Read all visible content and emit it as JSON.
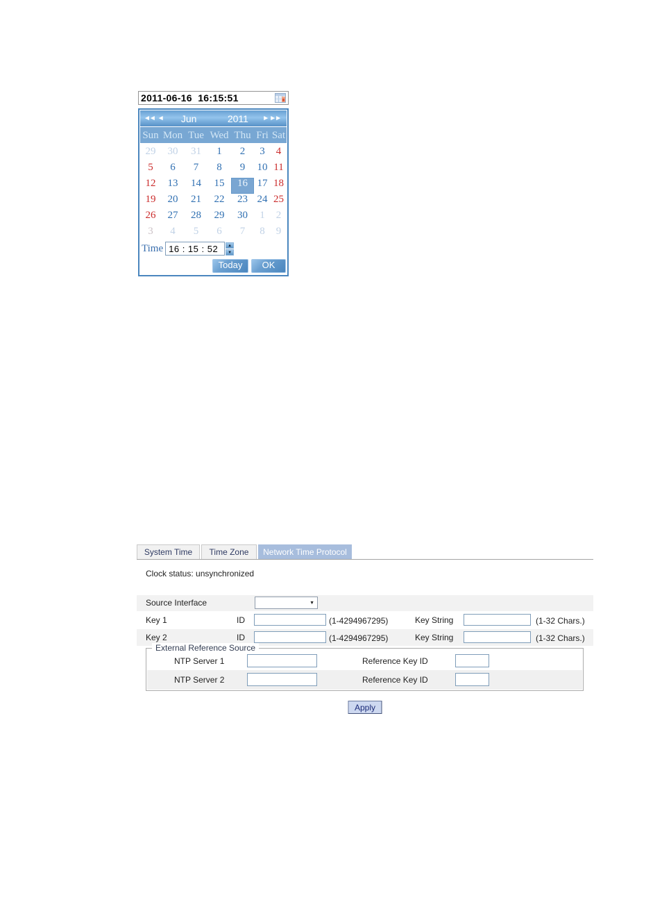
{
  "calendar": {
    "datetime_value": "2011-06-16  16:15:51",
    "nav": {
      "prev_year": "◄◄",
      "prev_month": "◄",
      "month": "Jun",
      "year": "2011",
      "next_month": "►",
      "next_year": "►►"
    },
    "day_headers": [
      "Sun",
      "Mon",
      "Tue",
      "Wed",
      "Thu",
      "Fri",
      "Sat"
    ],
    "weeks": [
      [
        {
          "d": "29",
          "t": "prev"
        },
        {
          "d": "30",
          "t": "prev"
        },
        {
          "d": "31",
          "t": "prev"
        },
        {
          "d": "1",
          "t": "day"
        },
        {
          "d": "2",
          "t": "day"
        },
        {
          "d": "3",
          "t": "day"
        },
        {
          "d": "4",
          "t": "weekend"
        }
      ],
      [
        {
          "d": "5",
          "t": "weekend"
        },
        {
          "d": "6",
          "t": "day"
        },
        {
          "d": "7",
          "t": "day"
        },
        {
          "d": "8",
          "t": "day"
        },
        {
          "d": "9",
          "t": "day"
        },
        {
          "d": "10",
          "t": "day"
        },
        {
          "d": "11",
          "t": "weekend"
        }
      ],
      [
        {
          "d": "12",
          "t": "weekend"
        },
        {
          "d": "13",
          "t": "day"
        },
        {
          "d": "14",
          "t": "day"
        },
        {
          "d": "15",
          "t": "day"
        },
        {
          "d": "16",
          "t": "selected"
        },
        {
          "d": "17",
          "t": "day"
        },
        {
          "d": "18",
          "t": "weekend"
        }
      ],
      [
        {
          "d": "19",
          "t": "weekend"
        },
        {
          "d": "20",
          "t": "day"
        },
        {
          "d": "21",
          "t": "day"
        },
        {
          "d": "22",
          "t": "day"
        },
        {
          "d": "23",
          "t": "day"
        },
        {
          "d": "24",
          "t": "day"
        },
        {
          "d": "25",
          "t": "weekend"
        }
      ],
      [
        {
          "d": "26",
          "t": "weekend"
        },
        {
          "d": "27",
          "t": "day"
        },
        {
          "d": "28",
          "t": "day"
        },
        {
          "d": "29",
          "t": "day"
        },
        {
          "d": "30",
          "t": "day"
        },
        {
          "d": "1",
          "t": "next"
        },
        {
          "d": "2",
          "t": "next"
        }
      ],
      [
        {
          "d": "3",
          "t": "nextsun"
        },
        {
          "d": "4",
          "t": "next"
        },
        {
          "d": "5",
          "t": "next"
        },
        {
          "d": "6",
          "t": "next"
        },
        {
          "d": "7",
          "t": "next"
        },
        {
          "d": "8",
          "t": "next"
        },
        {
          "d": "9",
          "t": "next"
        }
      ]
    ],
    "time_label": "Time",
    "time_value": "16 : 15 : 52",
    "today_button": "Today",
    "ok_button": "OK"
  },
  "ntp_form": {
    "tabs": [
      {
        "label": "System Time",
        "active": false
      },
      {
        "label": "Time Zone",
        "active": false
      },
      {
        "label": "Network Time Protocol",
        "active": true
      }
    ],
    "clock_status": "Clock status: unsynchronized",
    "source_interface": {
      "label": "Source Interface",
      "value": ""
    },
    "key1": {
      "label": "Key 1",
      "id_label": "ID",
      "id_value": "",
      "id_hint": "(1-4294967295)",
      "key_string_label": "Key String",
      "key_string_value": "",
      "key_string_hint": "(1-32 Chars.)"
    },
    "key2": {
      "label": "Key 2",
      "id_label": "ID",
      "id_value": "",
      "id_hint": "(1-4294967295)",
      "key_string_label": "Key String",
      "key_string_value": "",
      "key_string_hint": "(1-32 Chars.)"
    },
    "external_reference": {
      "legend": "External Reference Source",
      "rows": [
        {
          "server_label": "NTP Server 1",
          "server_value": "",
          "ref_label": "Reference Key ID",
          "ref_value": ""
        },
        {
          "server_label": "NTP Server 2",
          "server_value": "",
          "ref_label": "Reference Key ID",
          "ref_value": ""
        }
      ]
    },
    "apply_button": "Apply"
  },
  "colors": {
    "accent_blue": "#4a86be",
    "calendar_header_blue": "#78a7d3",
    "weekday_blue": "#3070b2",
    "weekend_red": "#cb2c2c",
    "selected_day_bg": "#7aa6d2",
    "active_tab_bg": "#a7bddd",
    "row_gray": "#f2f2f2",
    "apply_bg": "#cdd8f0"
  }
}
